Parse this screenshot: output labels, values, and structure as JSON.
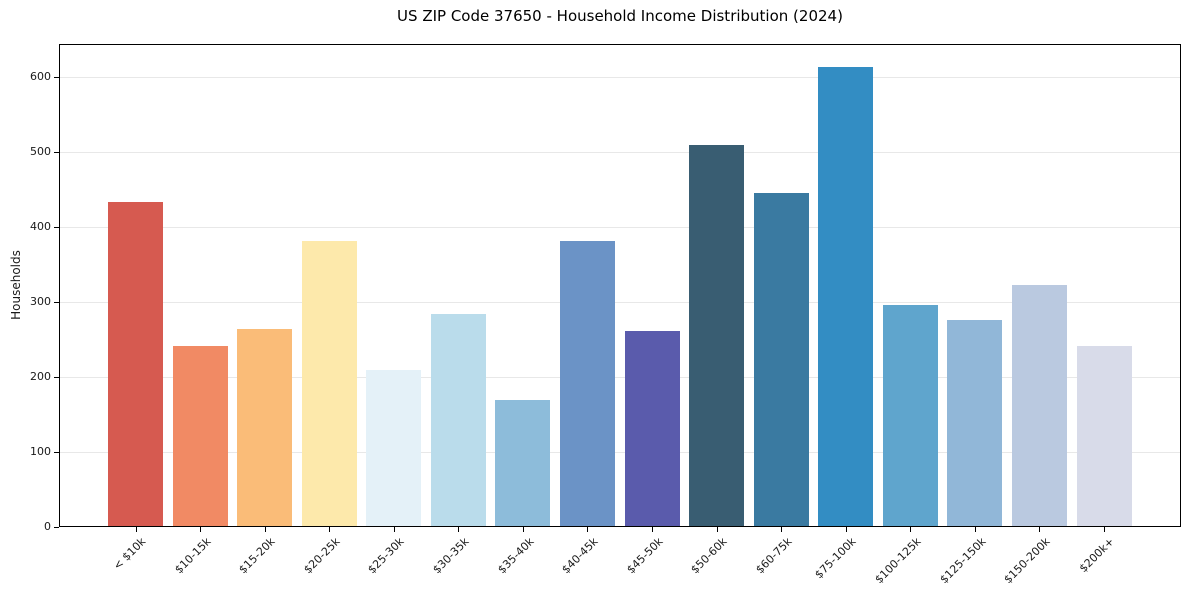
{
  "figure": {
    "background": "#ffffff"
  },
  "chart_data": {
    "type": "bar",
    "title": "US ZIP Code 37650 - Household Income Distribution (2024)",
    "xlabel": "",
    "ylabel": "Households",
    "ylim": [
      0,
      644
    ],
    "yticks": [
      0,
      100,
      200,
      300,
      400,
      500,
      600
    ],
    "grid": "horizontal-light",
    "legend_position": "none",
    "x_tick_rotation_deg": 45,
    "categories": [
      "< $10k",
      "$10-15k",
      "$15-20k",
      "$20-25k",
      "$25-30k",
      "$30-35k",
      "$35-40k",
      "$40-45k",
      "$45-50k",
      "$50-60k",
      "$60-75k",
      "$75-100k",
      "$100-125k",
      "$125-150k",
      "$150-200k",
      "$200k+"
    ],
    "values": [
      433,
      241,
      264,
      381,
      210,
      284,
      170,
      381,
      262,
      509,
      446,
      613,
      296,
      276,
      323,
      241
    ],
    "bar_colors": [
      "#d65a50",
      "#f18a64",
      "#fabc78",
      "#fde9ab",
      "#e4f1f8",
      "#badceb",
      "#8dbcda",
      "#6b93c6",
      "#5a5bac",
      "#395d72",
      "#3a7aa1",
      "#338dc3",
      "#5fa5cd",
      "#91b7d8",
      "#bac9e0",
      "#d8dbe9"
    ],
    "axis_color": "#000000",
    "gridline_color": "#e8e8e8",
    "text_color": "#1a1a1a"
  }
}
